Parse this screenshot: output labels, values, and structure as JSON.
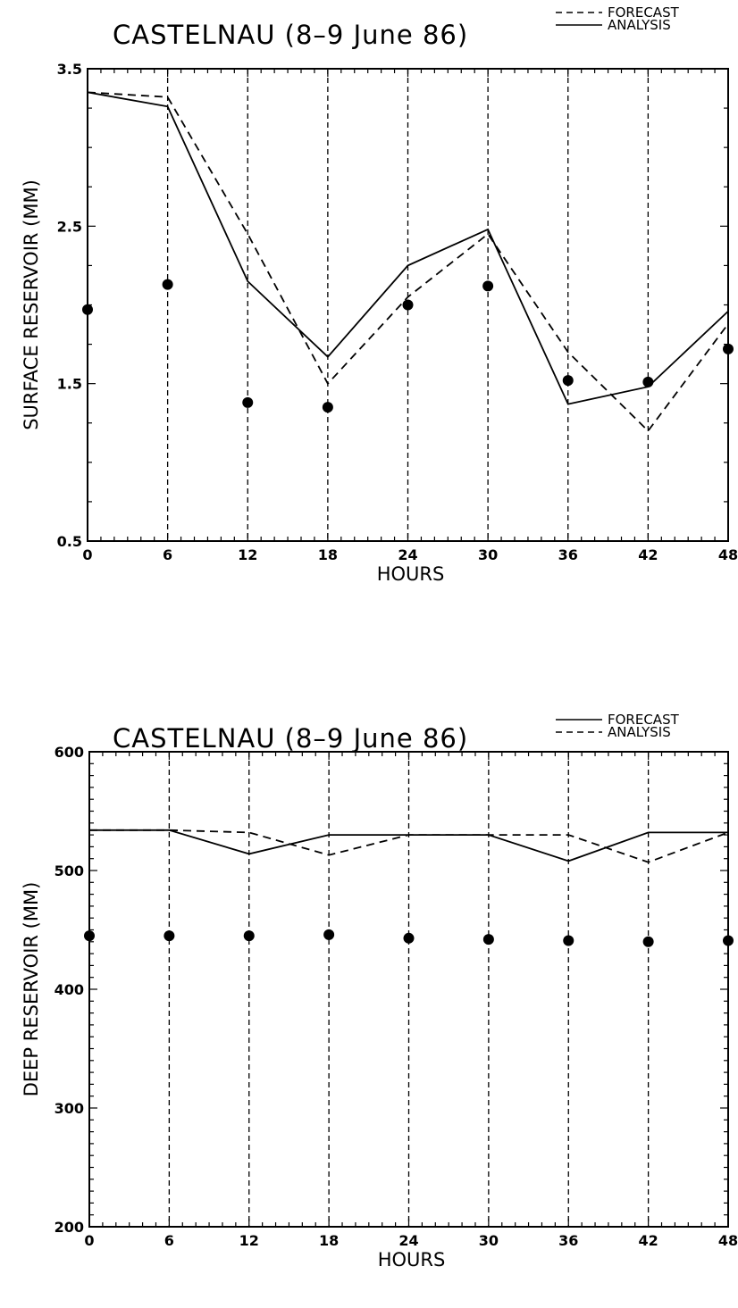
{
  "chart_data": [
    {
      "type": "line",
      "title": "CASTELNAU  (8–9  June  86)",
      "xlabel": "HOURS",
      "ylabel": "SURFACE RESERVOIR (MM)",
      "xlim": [
        0,
        48
      ],
      "ylim": [
        0.5,
        3.5
      ],
      "x_ticks": [
        "0",
        "6",
        "12",
        "18",
        "24",
        "30",
        "36",
        "42",
        "48"
      ],
      "y_ticks": [
        "0.5",
        "1.5",
        "2.5",
        "3.5"
      ],
      "legend_placement": "top-right",
      "legend": [
        {
          "label": "FORECAST",
          "style": "dashed"
        },
        {
          "label": "ANALYSIS",
          "style": "solid"
        }
      ],
      "x": [
        0,
        6,
        12,
        18,
        24,
        30,
        36,
        42,
        48
      ],
      "series": [
        {
          "name": "FORECAST",
          "style": "dashed",
          "values": [
            3.35,
            3.32,
            2.45,
            1.5,
            2.05,
            2.45,
            1.7,
            1.2,
            1.88
          ]
        },
        {
          "name": "ANALYSIS",
          "style": "solid",
          "values": [
            3.35,
            3.26,
            2.15,
            1.67,
            2.25,
            2.48,
            1.37,
            1.48,
            1.96
          ]
        },
        {
          "style": "dots",
          "values": [
            1.97,
            2.13,
            1.38,
            1.35,
            2.0,
            2.12,
            1.52,
            1.51,
            1.72
          ]
        }
      ],
      "vertical_dashed_lines_at": [
        6,
        12,
        18,
        24,
        30,
        36,
        42
      ]
    },
    {
      "type": "line",
      "title": "CASTELNAU  (8–9  June  86)",
      "xlabel": "HOURS",
      "ylabel": "DEEP RESERVOIR (MM)",
      "xlim": [
        0,
        48
      ],
      "ylim": [
        200,
        600
      ],
      "x_ticks": [
        "0",
        "6",
        "12",
        "18",
        "24",
        "30",
        "36",
        "42",
        "48"
      ],
      "y_ticks": [
        "200",
        "300",
        "400",
        "500",
        "600"
      ],
      "legend_placement": "top-right",
      "legend": [
        {
          "label": "FORECAST",
          "style": "solid"
        },
        {
          "label": "ANALYSIS",
          "style": "dashed"
        }
      ],
      "x": [
        0,
        6,
        12,
        18,
        24,
        30,
        36,
        42,
        48
      ],
      "series": [
        {
          "name": "FORECAST",
          "style": "solid",
          "values": [
            534,
            534,
            514,
            530,
            530,
            530,
            508,
            532,
            532
          ]
        },
        {
          "name": "ANALYSIS",
          "style": "dashed",
          "values": [
            534,
            534,
            532,
            513,
            530,
            530,
            530,
            507,
            532
          ]
        },
        {
          "style": "dots",
          "values": [
            445,
            445,
            445,
            446,
            443,
            442,
            441,
            440,
            441
          ]
        }
      ],
      "vertical_dashed_lines_at": [
        6,
        12,
        18,
        24,
        30,
        36,
        42
      ]
    }
  ]
}
